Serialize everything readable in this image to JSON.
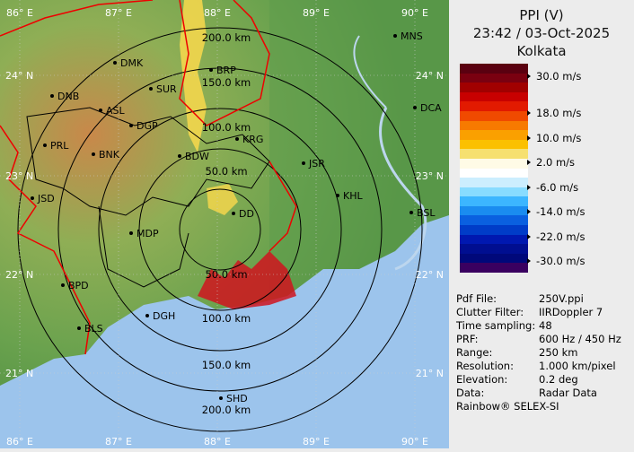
{
  "header": {
    "product": "PPI (V)",
    "datetime": "23:42 / 03-Oct-2025",
    "station": "Kolkata"
  },
  "legend": {
    "colors": [
      "#5a0010",
      "#7a0010",
      "#a10000",
      "#c80000",
      "#e21a00",
      "#f04a00",
      "#f77a00",
      "#faa000",
      "#fbc000",
      "#f6e070",
      "#fffbe6",
      "#ffffff",
      "#cceefe",
      "#88dcff",
      "#3cb6ff",
      "#1a8cf0",
      "#0a60e0",
      "#003cc8",
      "#0018b0",
      "#000e90",
      "#00087a",
      "#3a0060"
    ],
    "labels": [
      "30.0 m/s",
      "18.0 m/s",
      "10.0 m/s",
      "2.0 m/s",
      "-6.0 m/s",
      "-14.0 m/s",
      "-22.0 m/s",
      "-30.0 m/s"
    ]
  },
  "info": [
    {
      "key": "Pdf File:",
      "value": "250V.ppi"
    },
    {
      "key": "Clutter Filter:",
      "value": "IIRDoppler 7"
    },
    {
      "key": "Time sampling:",
      "value": "48"
    },
    {
      "key": "PRF:",
      "value": "600 Hz / 450 Hz"
    },
    {
      "key": "Range:",
      "value": "250 km"
    },
    {
      "key": "Resolution:",
      "value": "1.000 km/pixel"
    },
    {
      "key": "Elevation:",
      "value": "0.2 deg"
    },
    {
      "key": "Data:",
      "value": "Radar Data"
    }
  ],
  "footer": "Rainbow® SELEX-SI",
  "map": {
    "longitudes_top": [
      "86° E",
      "87° E",
      "88° E",
      "89° E",
      "90° E"
    ],
    "longitudes_bottom": [
      "86° E",
      "87° E",
      "88° E",
      "89° E",
      "90° E"
    ],
    "latitudes_left": [
      "24° N",
      "23° N",
      "22° N",
      "21° N"
    ],
    "latitudes_right": [
      "24° N",
      "23° N",
      "22° N",
      "21° N"
    ],
    "range_rings": [
      "200.0 km",
      "150.0 km",
      "100.0 km",
      "50.0 km",
      "50.0 km",
      "100.0 km",
      "150.0 km",
      "200.0 km"
    ],
    "cities": [
      "MNS",
      "DMK",
      "BRP",
      "DNB",
      "SUR",
      "ASL",
      "DGP",
      "DCA",
      "PRL",
      "BNK",
      "KRG",
      "BDW",
      "JSR",
      "JSD",
      "KHL",
      "DD",
      "BSL",
      "MDP",
      "DGH",
      "BPD",
      "BLS",
      "SHD"
    ]
  }
}
